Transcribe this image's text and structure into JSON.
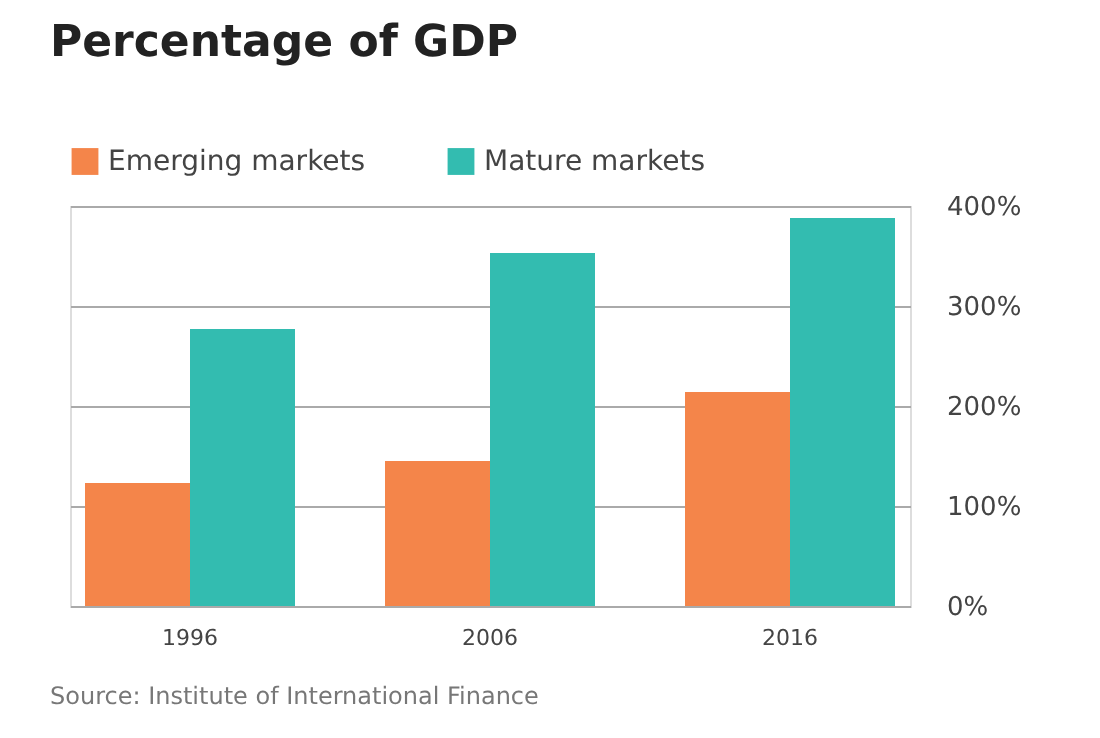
{
  "chart_data": {
    "type": "bar",
    "title": "Percentage of GDP",
    "categories": [
      "1996",
      "2006",
      "2016"
    ],
    "series": [
      {
        "name": "Emerging markets",
        "color": "#f4854a",
        "values": [
          123,
          145,
          214
        ]
      },
      {
        "name": "Mature markets",
        "color": "#33bcb0",
        "values": [
          277,
          353,
          388
        ]
      }
    ],
    "ylim": [
      0,
      400
    ],
    "yticks": [
      {
        "value": 0,
        "label": "0%"
      },
      {
        "value": 100,
        "label": "100%"
      },
      {
        "value": 200,
        "label": "200%"
      },
      {
        "value": 300,
        "label": "300%"
      },
      {
        "value": 400,
        "label": "400%"
      }
    ],
    "grid": "y",
    "legend": "top left",
    "annotations": [
      "Source: Institute of International Finance"
    ]
  }
}
